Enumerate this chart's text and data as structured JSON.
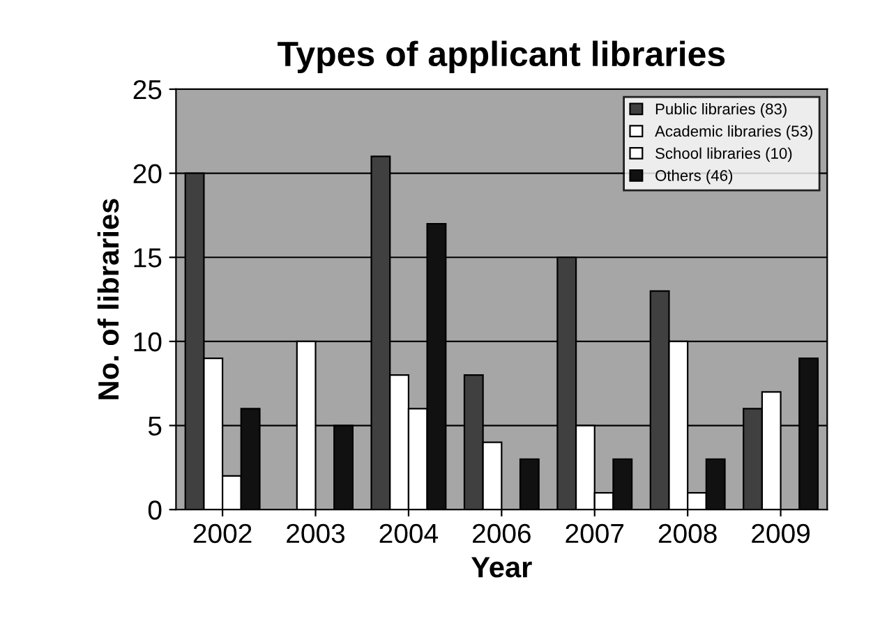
{
  "chart_data": {
    "type": "bar",
    "title": "Types of applicant libraries",
    "xlabel": "Year",
    "ylabel": "No. of libraries",
    "categories": [
      "2002",
      "2003",
      "2004",
      "2006",
      "2007",
      "2008",
      "2009"
    ],
    "series": [
      {
        "name": "Public libraries (83)",
        "color": "#404040",
        "values": [
          20,
          0,
          21,
          8,
          15,
          13,
          6
        ]
      },
      {
        "name": "Academic libraries (53)",
        "color": "#ffffff",
        "values": [
          9,
          10,
          8,
          4,
          5,
          10,
          7
        ]
      },
      {
        "name": "School libraries (10)",
        "color": "#ffffff",
        "values": [
          2,
          0,
          6,
          0,
          1,
          1,
          0
        ]
      },
      {
        "name": "Others (46)",
        "color": "#111111",
        "values": [
          6,
          5,
          17,
          3,
          3,
          3,
          9
        ]
      }
    ],
    "ylim": [
      0,
      25
    ],
    "yticks": [
      0,
      5,
      10,
      15,
      20,
      25
    ],
    "grid": "y",
    "legend": "top right"
  }
}
